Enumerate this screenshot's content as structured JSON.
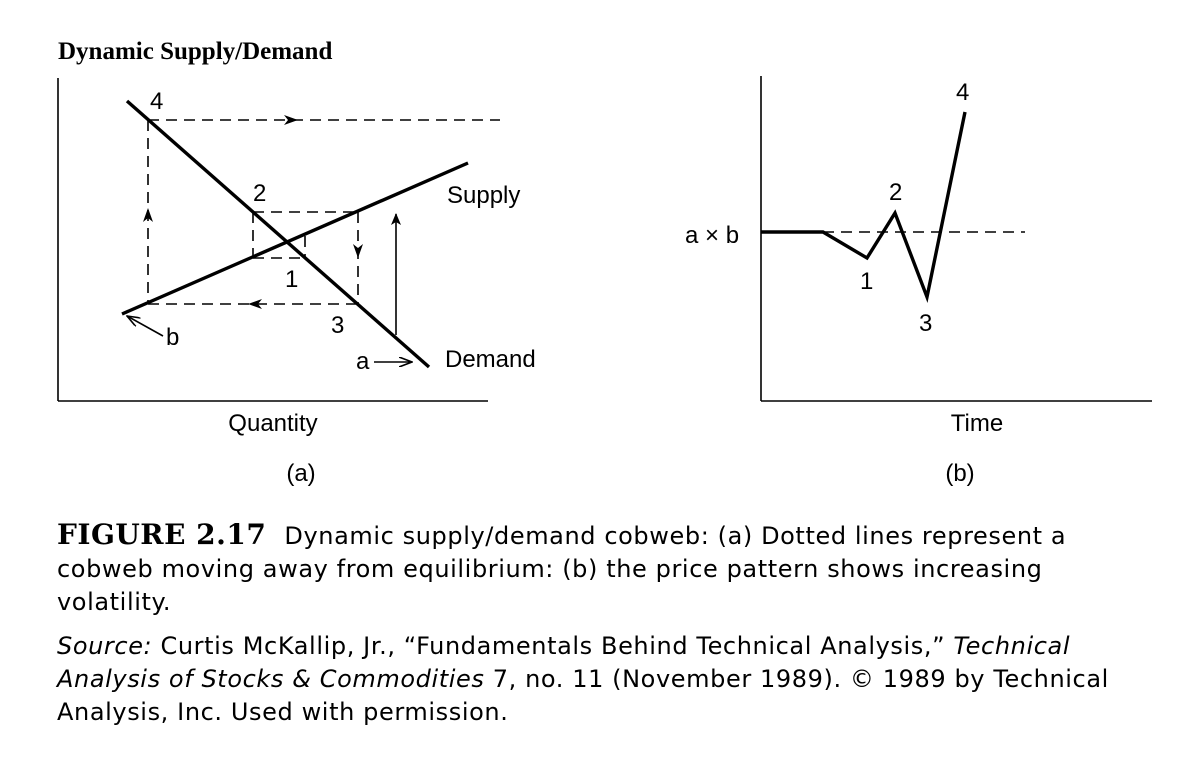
{
  "title": "Dynamic Supply/Demand",
  "panel_a": {
    "x_axis_label": "Quantity",
    "panel_label": "(a)",
    "supply_label": "Supply",
    "demand_label": "Demand",
    "points": [
      "1",
      "2",
      "3",
      "4"
    ],
    "start_a": "a",
    "start_b": "b"
  },
  "panel_b": {
    "x_axis_label": "Time",
    "panel_label": "(b)",
    "equilibrium_label": "a × b",
    "points": [
      "1",
      "2",
      "3",
      "4"
    ]
  },
  "caption": {
    "figure_label": "FIGURE 2.17",
    "text": "Dynamic supply/demand cobweb: (a) Dotted lines represent a cobweb moving away from equilibrium: (b) the price pattern shows increasing volatility."
  },
  "source": {
    "lead": "Source:",
    "part1": " Curtis McKallip, Jr., “Fundamentals Behind Technical Analysis,” ",
    "journal": "Technical Analysis of Stocks & Commodities",
    "part2": " 7, no. 11 (November 1989). © 1989 by Technical Analysis, Inc. Used with permission."
  }
}
